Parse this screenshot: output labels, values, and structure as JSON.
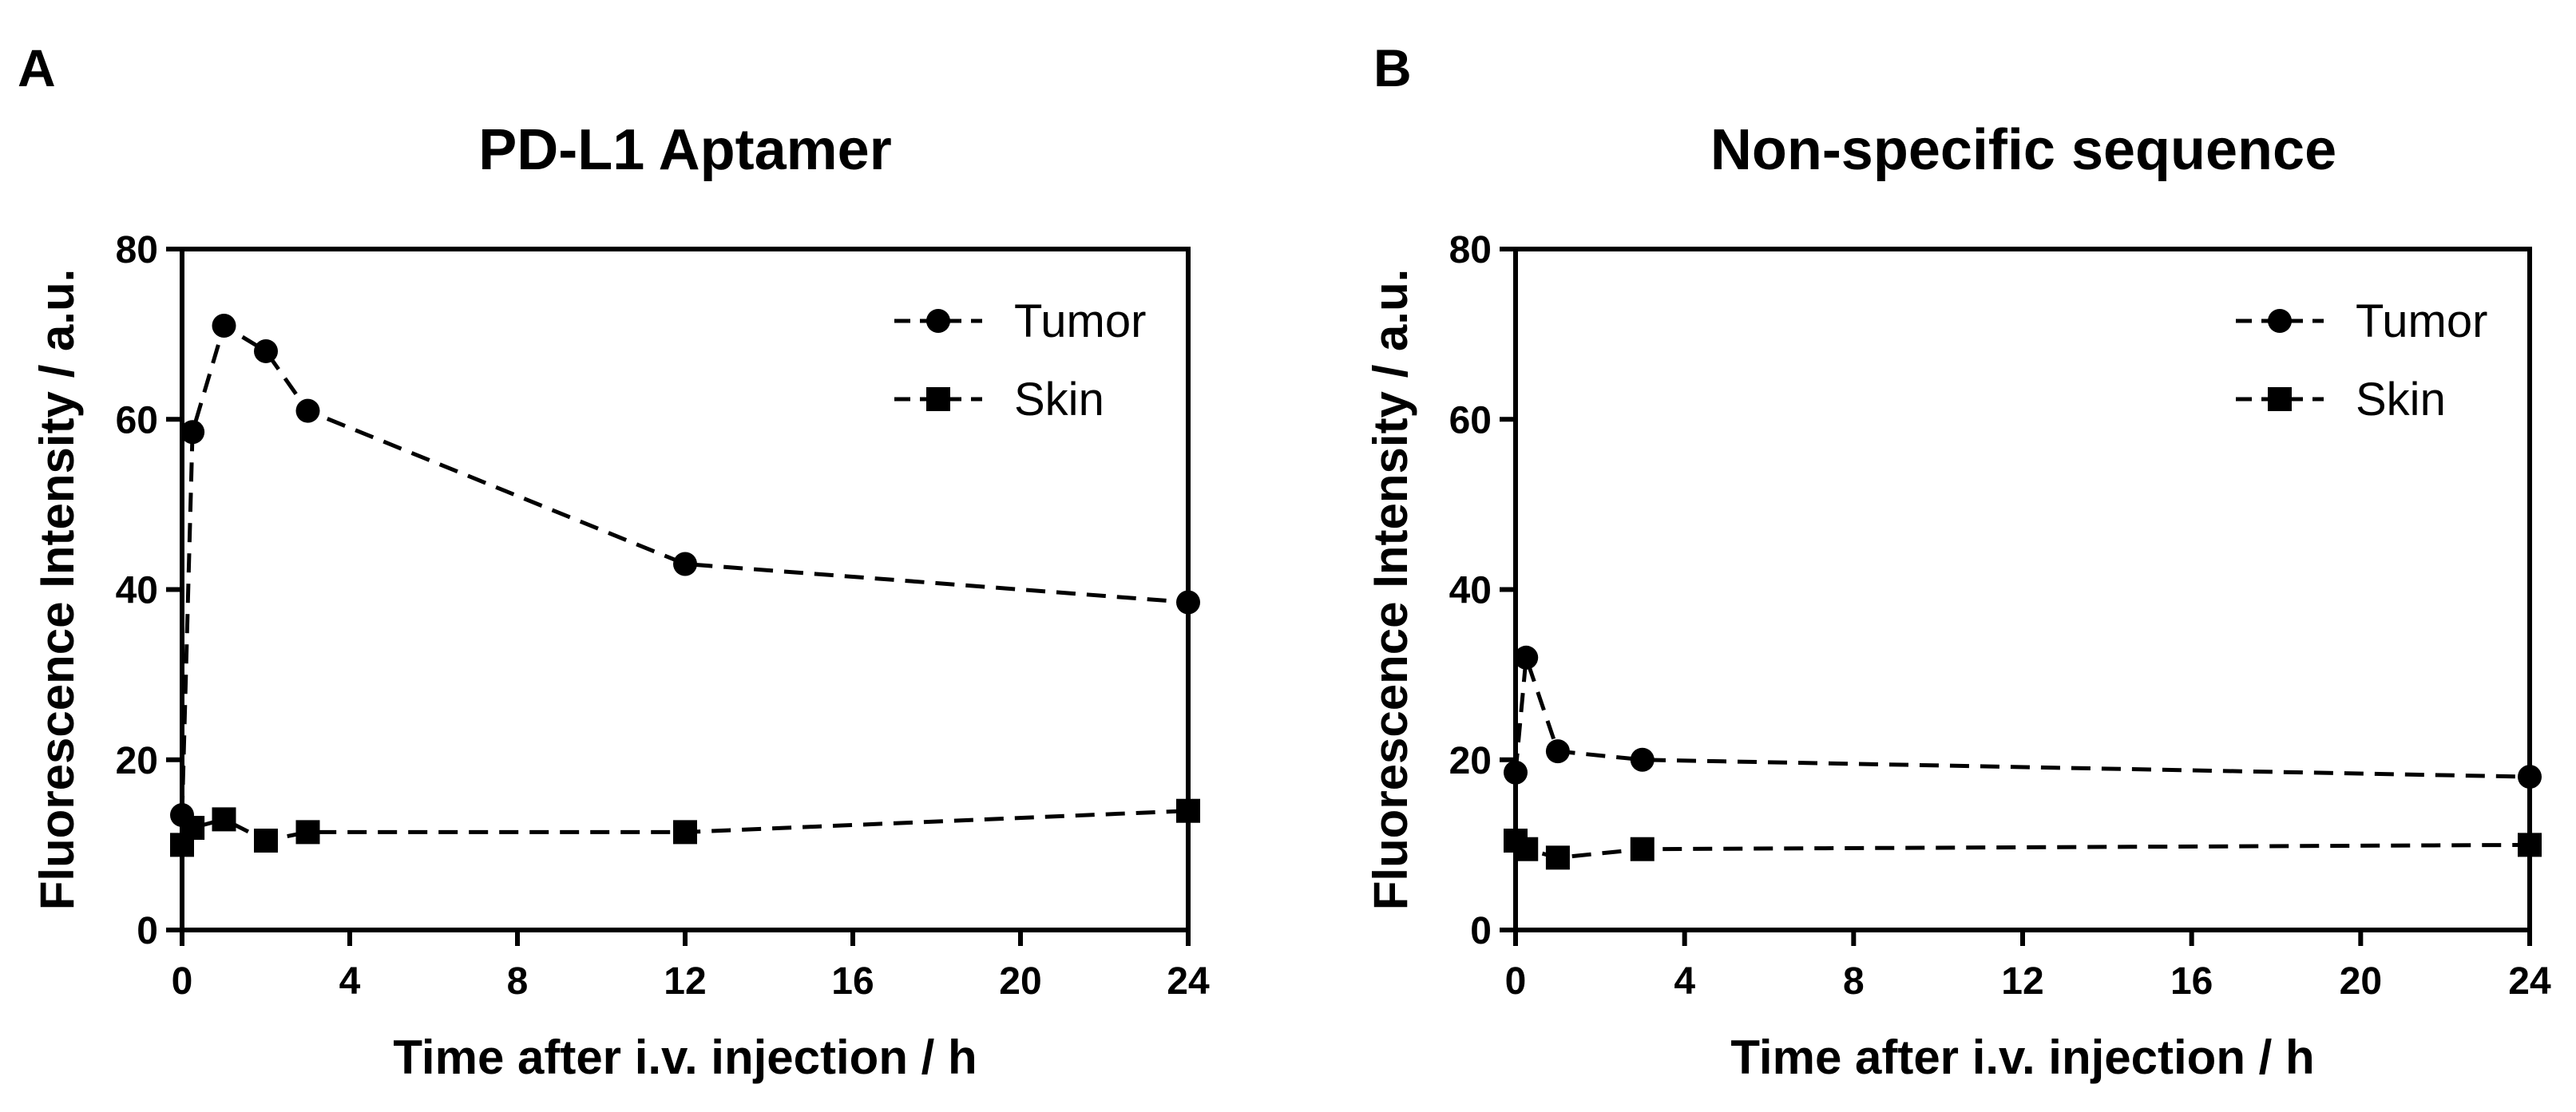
{
  "chart_data": [
    {
      "type": "line",
      "panel_label": "A",
      "title": "PD-L1 Aptamer",
      "xlabel": "Time after i.v. injection / h",
      "ylabel": "Fluorescence Intensity / a.u.",
      "xlim": [
        0,
        24
      ],
      "ylim": [
        0,
        80
      ],
      "xticks": [
        0,
        4,
        8,
        12,
        16,
        20,
        24
      ],
      "yticks": [
        0,
        20,
        40,
        60,
        80
      ],
      "grid": false,
      "legend_position": "top-right",
      "series": [
        {
          "name": "Tumor",
          "marker": "circle",
          "line": "dashed",
          "x": [
            0,
            0.25,
            1,
            2,
            3,
            12,
            24
          ],
          "y": [
            13.5,
            58.5,
            71,
            68,
            61,
            43,
            38.5
          ]
        },
        {
          "name": "Skin",
          "marker": "square",
          "line": "dashed",
          "x": [
            0,
            0.25,
            1,
            2,
            3,
            12,
            24
          ],
          "y": [
            10,
            12,
            13,
            10.5,
            11.5,
            11.5,
            14
          ]
        }
      ]
    },
    {
      "type": "line",
      "panel_label": "B",
      "title": "Non-specific sequence",
      "xlabel": "Time after i.v. injection / h",
      "ylabel": "Fluorescence Intensity / a.u.",
      "xlim": [
        0,
        24
      ],
      "ylim": [
        0,
        80
      ],
      "xticks": [
        0,
        4,
        8,
        12,
        16,
        20,
        24
      ],
      "yticks": [
        0,
        20,
        40,
        60,
        80
      ],
      "grid": false,
      "legend_position": "top-right",
      "series": [
        {
          "name": "Tumor",
          "marker": "circle",
          "line": "dashed",
          "x": [
            0,
            0.25,
            1,
            3,
            24
          ],
          "y": [
            18.5,
            32,
            21,
            20,
            18
          ]
        },
        {
          "name": "Skin",
          "marker": "square",
          "line": "dashed",
          "x": [
            0,
            0.25,
            1,
            3,
            24
          ],
          "y": [
            10.5,
            9.5,
            8.5,
            9.5,
            10
          ]
        }
      ]
    }
  ]
}
